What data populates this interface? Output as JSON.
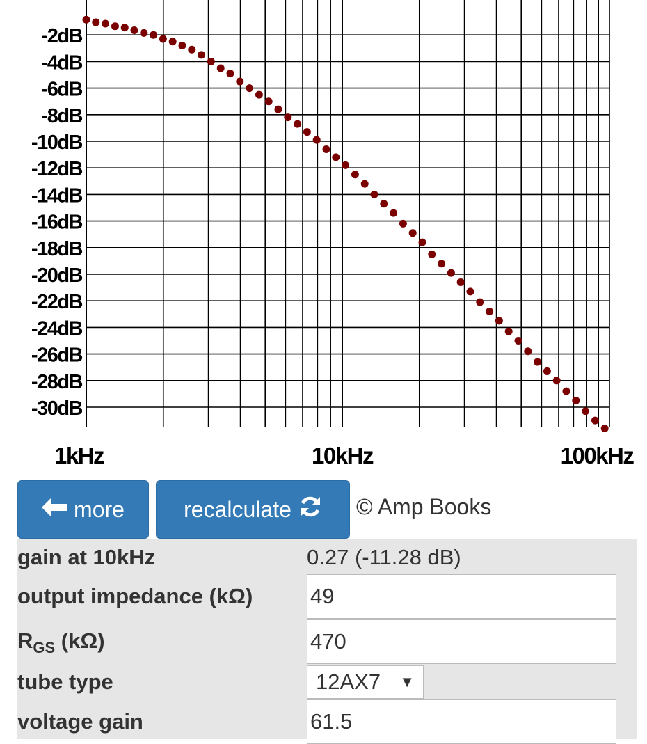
{
  "chart_data": {
    "type": "scatter",
    "x_scale": "log",
    "x_ticks": [
      "1kHz",
      "10kHz",
      "100kHz"
    ],
    "y_ticks": [
      "-2dB",
      "-4dB",
      "-6dB",
      "-8dB",
      "-10dB",
      "-12dB",
      "-14dB",
      "-16dB",
      "-18dB",
      "-20dB",
      "-22dB",
      "-24dB",
      "-26dB",
      "-28dB",
      "-30dB"
    ],
    "xlim": [
      1000,
      100000
    ],
    "ylim": [
      -31,
      -0.5
    ],
    "grid": true,
    "marker_color": "#7a0000",
    "series": [
      {
        "x": [
          1000,
          1090,
          1188,
          1296,
          1413,
          1540,
          1679,
          1830,
          1995,
          2175,
          2371,
          2585,
          2818,
          3072,
          3350,
          3652,
          3981,
          4340,
          4732,
          5158,
          5623,
          6131,
          6683,
          7286,
          7943,
          8660,
          9441,
          10293,
          11220,
          12233,
          13335,
          14537,
          15849,
          17278,
          18836,
          20535,
          22387,
          24406,
          26607,
          29007,
          31623,
          34474,
          37584,
          40973,
          44668,
          48697,
          53088,
          57876,
          63096,
          68786,
          74989,
          81752,
          89125,
          97163,
          105925
        ],
        "y": [
          -0.85,
          -1.05,
          -1.15,
          -1.35,
          -1.45,
          -1.65,
          -1.85,
          -2.0,
          -2.3,
          -2.5,
          -2.8,
          -3.1,
          -3.5,
          -4.0,
          -4.5,
          -4.9,
          -5.5,
          -6.0,
          -6.5,
          -7.0,
          -7.6,
          -8.2,
          -8.7,
          -9.3,
          -9.9,
          -10.6,
          -11.2,
          -11.8,
          -12.5,
          -13.2,
          -14.0,
          -14.7,
          -15.4,
          -16.2,
          -16.9,
          -17.6,
          -18.5,
          -19.2,
          -19.9,
          -20.6,
          -21.3,
          -22.1,
          -22.8,
          -23.5,
          -24.3,
          -25.0,
          -25.8,
          -26.6,
          -27.3,
          -28.0,
          -28.8,
          -29.5,
          -30.3,
          -31.0,
          -31.6
        ]
      }
    ]
  },
  "buttons": {
    "more": "more",
    "recalculate": "recalculate"
  },
  "copyright": "© Amp Books",
  "fields": {
    "gain_label": "gain at 10kHz",
    "gain_value": "0.27 (-11.28 dB)",
    "output_impedance_label": "output impedance (kΩ)",
    "output_impedance_value": "49",
    "rgs_label_main": "R",
    "rgs_label_sub": "GS",
    "rgs_label_unit": " (kΩ)",
    "rgs_value": "470",
    "tube_type_label": "tube type",
    "tube_type_value": "12AX7",
    "voltage_gain_label": "voltage gain",
    "voltage_gain_value": "61.5"
  }
}
